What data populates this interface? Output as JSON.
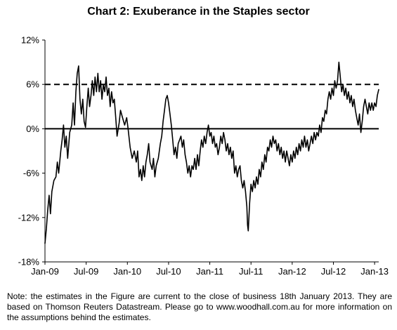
{
  "chart_data": {
    "type": "line",
    "title": "Chart 2: Exuberance in the Staples sector",
    "xlabel": "",
    "ylabel": "",
    "y_ticks": [
      "12%",
      "6%",
      "0%",
      "-6%",
      "-12%",
      "-18%"
    ],
    "y_tick_values": [
      12,
      6,
      0,
      -6,
      -12,
      -18
    ],
    "x_ticks": [
      "Jan-09",
      "Jul-09",
      "Jan-10",
      "Jul-10",
      "Jan-11",
      "Jul-11",
      "Jan-12",
      "Jul-12",
      "Jan-13"
    ],
    "ylim": [
      -18,
      12
    ],
    "x_range_months": [
      0,
      48.6
    ],
    "reference_lines": [
      {
        "y": 6,
        "style": "dashed"
      },
      {
        "y": 0,
        "style": "solid"
      }
    ],
    "series": [
      {
        "color": "#000000",
        "points": [
          [
            0.0,
            -15.5
          ],
          [
            0.2,
            -13.5
          ],
          [
            0.4,
            -11.0
          ],
          [
            0.6,
            -9.0
          ],
          [
            0.8,
            -11.5
          ],
          [
            1.0,
            -8.5
          ],
          [
            1.3,
            -7.0
          ],
          [
            1.6,
            -6.5
          ],
          [
            1.8,
            -4.5
          ],
          [
            2.0,
            -6.0
          ],
          [
            2.3,
            -3.0
          ],
          [
            2.5,
            -1.5
          ],
          [
            2.7,
            0.5
          ],
          [
            2.9,
            -2.5
          ],
          [
            3.1,
            -1.0
          ],
          [
            3.3,
            -4.0
          ],
          [
            3.6,
            -0.5
          ],
          [
            3.9,
            0.5
          ],
          [
            4.1,
            3.5
          ],
          [
            4.3,
            0.5
          ],
          [
            4.5,
            5.0
          ],
          [
            4.7,
            7.5
          ],
          [
            4.9,
            8.5
          ],
          [
            5.1,
            4.0
          ],
          [
            5.3,
            2.0
          ],
          [
            5.5,
            4.0
          ],
          [
            5.7,
            1.0
          ],
          [
            5.9,
            0.2
          ],
          [
            6.1,
            3.0
          ],
          [
            6.3,
            5.5
          ],
          [
            6.5,
            3.0
          ],
          [
            6.7,
            4.5
          ],
          [
            6.9,
            6.5
          ],
          [
            7.1,
            4.5
          ],
          [
            7.3,
            7.0
          ],
          [
            7.5,
            5.0
          ],
          [
            7.7,
            7.5
          ],
          [
            7.9,
            5.0
          ],
          [
            8.1,
            6.5
          ],
          [
            8.3,
            4.0
          ],
          [
            8.5,
            6.0
          ],
          [
            8.7,
            5.0
          ],
          [
            8.9,
            7.0
          ],
          [
            9.1,
            4.5
          ],
          [
            9.3,
            5.5
          ],
          [
            9.5,
            3.0
          ],
          [
            9.7,
            5.0
          ],
          [
            9.9,
            3.5
          ],
          [
            10.1,
            4.0
          ],
          [
            10.3,
            1.5
          ],
          [
            10.5,
            -1.0
          ],
          [
            10.8,
            0.8
          ],
          [
            11.0,
            2.5
          ],
          [
            11.3,
            1.5
          ],
          [
            11.6,
            0.5
          ],
          [
            11.9,
            1.5
          ],
          [
            12.1,
            0.0
          ],
          [
            12.4,
            -2.5
          ],
          [
            12.7,
            -4.0
          ],
          [
            13.0,
            -3.0
          ],
          [
            13.3,
            -4.5
          ],
          [
            13.5,
            -3.0
          ],
          [
            13.7,
            -6.5
          ],
          [
            13.9,
            -5.5
          ],
          [
            14.1,
            -7.0
          ],
          [
            14.3,
            -5.0
          ],
          [
            14.5,
            -6.5
          ],
          [
            14.7,
            -4.5
          ],
          [
            14.9,
            -3.5
          ],
          [
            15.1,
            -2.0
          ],
          [
            15.3,
            -4.5
          ],
          [
            15.6,
            -5.5
          ],
          [
            15.8,
            -4.0
          ],
          [
            16.0,
            -6.5
          ],
          [
            16.2,
            -5.0
          ],
          [
            16.5,
            -4.0
          ],
          [
            16.8,
            -2.0
          ],
          [
            17.0,
            -1.0
          ],
          [
            17.2,
            1.0
          ],
          [
            17.4,
            2.5
          ],
          [
            17.6,
            4.0
          ],
          [
            17.8,
            4.5
          ],
          [
            18.0,
            3.5
          ],
          [
            18.2,
            2.0
          ],
          [
            18.4,
            0.5
          ],
          [
            18.6,
            -1.5
          ],
          [
            18.8,
            -3.5
          ],
          [
            19.0,
            -2.5
          ],
          [
            19.2,
            -4.0
          ],
          [
            19.4,
            -2.0
          ],
          [
            19.6,
            -1.5
          ],
          [
            19.8,
            -1.0
          ],
          [
            20.0,
            -2.5
          ],
          [
            20.2,
            -1.5
          ],
          [
            20.4,
            -3.5
          ],
          [
            20.6,
            -4.5
          ],
          [
            20.8,
            -6.0
          ],
          [
            21.0,
            -5.0
          ],
          [
            21.2,
            -6.5
          ],
          [
            21.4,
            -5.0
          ],
          [
            21.6,
            -5.5
          ],
          [
            21.8,
            -4.0
          ],
          [
            22.0,
            -5.5
          ],
          [
            22.2,
            -3.5
          ],
          [
            22.4,
            -5.0
          ],
          [
            22.6,
            -3.0
          ],
          [
            22.8,
            -1.5
          ],
          [
            23.0,
            -2.5
          ],
          [
            23.2,
            -1.0
          ],
          [
            23.4,
            -2.0
          ],
          [
            23.6,
            -0.5
          ],
          [
            23.8,
            0.5
          ],
          [
            24.0,
            -1.0
          ],
          [
            24.2,
            -0.5
          ],
          [
            24.4,
            -2.0
          ],
          [
            24.6,
            -1.0
          ],
          [
            24.8,
            -2.5
          ],
          [
            25.0,
            -2.0
          ],
          [
            25.2,
            -3.5
          ],
          [
            25.4,
            -2.5
          ],
          [
            25.6,
            -1.0
          ],
          [
            25.8,
            -2.0
          ],
          [
            26.0,
            -0.5
          ],
          [
            26.2,
            -1.5
          ],
          [
            26.4,
            -3.0
          ],
          [
            26.6,
            -2.0
          ],
          [
            26.8,
            -3.5
          ],
          [
            27.0,
            -2.5
          ],
          [
            27.2,
            -4.0
          ],
          [
            27.4,
            -3.0
          ],
          [
            27.6,
            -6.0
          ],
          [
            27.8,
            -5.0
          ],
          [
            28.0,
            -6.5
          ],
          [
            28.2,
            -5.5
          ],
          [
            28.4,
            -5.0
          ],
          [
            28.6,
            -7.0
          ],
          [
            28.8,
            -8.0
          ],
          [
            29.0,
            -7.0
          ],
          [
            29.2,
            -8.5
          ],
          [
            29.4,
            -10.5
          ],
          [
            29.5,
            -13.0
          ],
          [
            29.6,
            -13.8
          ],
          [
            29.8,
            -10.0
          ],
          [
            30.0,
            -7.5
          ],
          [
            30.2,
            -8.5
          ],
          [
            30.4,
            -7.0
          ],
          [
            30.6,
            -8.0
          ],
          [
            30.8,
            -6.5
          ],
          [
            31.0,
            -7.5
          ],
          [
            31.2,
            -5.5
          ],
          [
            31.4,
            -6.5
          ],
          [
            31.6,
            -4.5
          ],
          [
            31.8,
            -5.5
          ],
          [
            32.0,
            -3.5
          ],
          [
            32.2,
            -4.5
          ],
          [
            32.4,
            -2.5
          ],
          [
            32.6,
            -3.0
          ],
          [
            32.8,
            -1.5
          ],
          [
            33.0,
            -2.5
          ],
          [
            33.2,
            -1.0
          ],
          [
            33.4,
            -2.0
          ],
          [
            33.6,
            -1.5
          ],
          [
            33.8,
            -3.0
          ],
          [
            34.0,
            -2.0
          ],
          [
            34.2,
            -3.5
          ],
          [
            34.4,
            -2.5
          ],
          [
            34.6,
            -4.0
          ],
          [
            34.8,
            -3.0
          ],
          [
            35.0,
            -4.5
          ],
          [
            35.2,
            -3.0
          ],
          [
            35.4,
            -4.0
          ],
          [
            35.6,
            -5.0
          ],
          [
            35.8,
            -3.5
          ],
          [
            36.0,
            -4.5
          ],
          [
            36.2,
            -3.0
          ],
          [
            36.4,
            -4.0
          ],
          [
            36.6,
            -2.5
          ],
          [
            36.8,
            -3.5
          ],
          [
            37.0,
            -2.0
          ],
          [
            37.2,
            -3.0
          ],
          [
            37.4,
            -1.5
          ],
          [
            37.6,
            -2.5
          ],
          [
            37.8,
            -1.0
          ],
          [
            38.0,
            -2.5
          ],
          [
            38.2,
            -1.5
          ],
          [
            38.4,
            -3.0
          ],
          [
            38.6,
            -2.0
          ],
          [
            38.8,
            -1.0
          ],
          [
            39.0,
            -2.0
          ],
          [
            39.2,
            -0.5
          ],
          [
            39.4,
            -1.5
          ],
          [
            39.6,
            -0.5
          ],
          [
            39.8,
            -1.0
          ],
          [
            40.0,
            0.5
          ],
          [
            40.2,
            -0.5
          ],
          [
            40.4,
            1.5
          ],
          [
            40.6,
            1.0
          ],
          [
            40.8,
            2.5
          ],
          [
            41.0,
            2.0
          ],
          [
            41.2,
            4.0
          ],
          [
            41.4,
            5.0
          ],
          [
            41.6,
            4.0
          ],
          [
            41.8,
            5.5
          ],
          [
            42.0,
            4.5
          ],
          [
            42.2,
            6.5
          ],
          [
            42.4,
            5.5
          ],
          [
            42.6,
            6.5
          ],
          [
            42.8,
            9.0
          ],
          [
            43.0,
            7.0
          ],
          [
            43.2,
            5.0
          ],
          [
            43.4,
            6.0
          ],
          [
            43.6,
            4.5
          ],
          [
            43.8,
            5.5
          ],
          [
            44.0,
            4.0
          ],
          [
            44.2,
            5.0
          ],
          [
            44.4,
            3.5
          ],
          [
            44.6,
            4.5
          ],
          [
            44.8,
            3.0
          ],
          [
            45.0,
            4.0
          ],
          [
            45.2,
            2.5
          ],
          [
            45.4,
            1.5
          ],
          [
            45.6,
            0.5
          ],
          [
            45.8,
            2.0
          ],
          [
            46.0,
            -0.5
          ],
          [
            46.2,
            1.0
          ],
          [
            46.4,
            3.0
          ],
          [
            46.6,
            4.0
          ],
          [
            46.8,
            3.0
          ],
          [
            47.0,
            2.0
          ],
          [
            47.2,
            3.5
          ],
          [
            47.4,
            2.5
          ],
          [
            47.6,
            3.5
          ],
          [
            47.8,
            2.5
          ],
          [
            48.0,
            3.5
          ],
          [
            48.2,
            3.0
          ],
          [
            48.4,
            4.5
          ],
          [
            48.6,
            5.3
          ]
        ]
      }
    ]
  },
  "note": "Note: the estimates in the Figure are current to the close of business 18th January 2013. They are based on Thomson Reuters Datastream. Please go to www.woodhall.com.au for more information on the assumptions behind the estimates."
}
